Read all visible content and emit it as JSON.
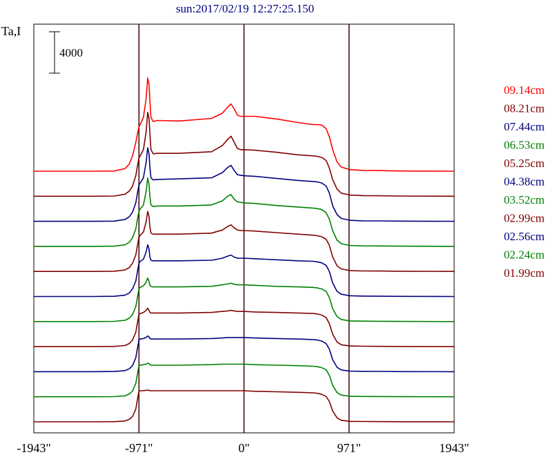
{
  "chart_data": {
    "type": "line",
    "title": "sun:2017/02/19 12:27:25.150",
    "ylabel": "Ta,I",
    "scale_bar_label": "4000",
    "scale_bar_value": 4000,
    "xlim": [
      -1943,
      1943
    ],
    "x_ticks": [
      {
        "value": -1943,
        "label": "-1943\""
      },
      {
        "value": -971,
        "label": "-971\""
      },
      {
        "value": 0,
        "label": "0\""
      },
      {
        "value": 971,
        "label": "971\""
      },
      {
        "value": 1943,
        "label": "1943\""
      }
    ],
    "vertical_markers": [
      -971,
      0,
      971
    ],
    "grid": false,
    "legend_position": "right",
    "profile_x": [
      -1943,
      -1400,
      -1200,
      -1100,
      -1060,
      -1030,
      -1000,
      -985,
      -971,
      -960,
      -930,
      -905,
      -890,
      -878,
      -870,
      -860,
      -840,
      -800,
      -600,
      -300,
      -200,
      -150,
      -120,
      -90,
      -60,
      -30,
      0,
      100,
      300,
      500,
      640,
      680,
      720,
      760,
      790,
      820,
      860,
      900,
      980,
      1100,
      1250,
      1450,
      1943
    ],
    "series": [
      {
        "name": "09.14cm",
        "color": "#ff0000",
        "baseline": 0,
        "values": [
          0,
          0,
          20,
          250,
          700,
          1500,
          2800,
          3600,
          4300,
          4500,
          5200,
          7000,
          9000,
          8400,
          6800,
          5200,
          4800,
          4900,
          4850,
          5100,
          5600,
          6200,
          6500,
          6000,
          5400,
          5300,
          5300,
          5300,
          5050,
          4700,
          4500,
          4500,
          4450,
          4100,
          3300,
          2100,
          900,
          400,
          150,
          80,
          60,
          20,
          0
        ]
      },
      {
        "name": "08.21cm",
        "color": "#800000",
        "baseline": 0,
        "values": [
          0,
          0,
          20,
          200,
          500,
          1000,
          2000,
          2900,
          3700,
          3900,
          4500,
          6200,
          8100,
          7500,
          6000,
          4500,
          4100,
          4150,
          4150,
          4300,
          4900,
          5500,
          5800,
          5200,
          4600,
          4500,
          4500,
          4450,
          4250,
          4000,
          3900,
          3850,
          3750,
          3450,
          2700,
          1600,
          700,
          300,
          120,
          60,
          50,
          20,
          0
        ]
      },
      {
        "name": "07.44cm",
        "color": "#000080",
        "baseline": 0,
        "values": [
          0,
          0,
          20,
          180,
          450,
          900,
          1800,
          2700,
          3500,
          3700,
          4200,
          5700,
          7100,
          6500,
          5200,
          4200,
          4000,
          4050,
          4100,
          4200,
          4700,
          5200,
          5400,
          4900,
          4500,
          4450,
          4400,
          4350,
          4150,
          3950,
          3850,
          3800,
          3700,
          3400,
          2700,
          1500,
          650,
          280,
          100,
          50,
          40,
          20,
          0
        ]
      },
      {
        "name": "06.53cm",
        "color": "#008000",
        "baseline": 0,
        "values": [
          0,
          0,
          20,
          150,
          400,
          850,
          1700,
          2600,
          3400,
          3600,
          4000,
          5300,
          6600,
          6000,
          4800,
          4000,
          3850,
          3900,
          3900,
          4000,
          4400,
          4850,
          5000,
          4550,
          4300,
          4250,
          4200,
          4150,
          3950,
          3800,
          3700,
          3650,
          3550,
          3250,
          2600,
          1500,
          600,
          260,
          90,
          50,
          40,
          20,
          0
        ]
      },
      {
        "name": "05.25cm",
        "color": "#800000",
        "baseline": 0,
        "values": [
          0,
          0,
          20,
          140,
          380,
          800,
          1600,
          2500,
          3300,
          3500,
          3800,
          4800,
          5800,
          5300,
          4300,
          3700,
          3600,
          3600,
          3600,
          3700,
          4000,
          4350,
          4500,
          4200,
          4000,
          3950,
          3950,
          3900,
          3750,
          3600,
          3500,
          3450,
          3350,
          3100,
          2500,
          1400,
          550,
          240,
          80,
          50,
          40,
          20,
          0
        ]
      },
      {
        "name": "04.38cm",
        "color": "#000080",
        "baseline": 0,
        "values": [
          0,
          0,
          20,
          130,
          350,
          750,
          1500,
          2400,
          3200,
          3400,
          3600,
          4300,
          5000,
          4600,
          3800,
          3500,
          3450,
          3450,
          3450,
          3500,
          3700,
          3900,
          4000,
          3800,
          3700,
          3700,
          3700,
          3650,
          3550,
          3450,
          3400,
          3350,
          3250,
          3000,
          2400,
          1300,
          500,
          220,
          70,
          40,
          30,
          15,
          0
        ]
      },
      {
        "name": "03.52cm",
        "color": "#008000",
        "baseline": 0,
        "values": [
          0,
          0,
          20,
          120,
          330,
          700,
          1450,
          2350,
          3150,
          3300,
          3450,
          3800,
          4200,
          3900,
          3500,
          3400,
          3350,
          3350,
          3350,
          3400,
          3550,
          3650,
          3700,
          3600,
          3550,
          3550,
          3550,
          3500,
          3400,
          3350,
          3300,
          3250,
          3150,
          2900,
          2300,
          1250,
          480,
          200,
          60,
          40,
          30,
          15,
          0
        ]
      },
      {
        "name": "02.99cm",
        "color": "#800000",
        "baseline": 0,
        "values": [
          0,
          0,
          20,
          110,
          300,
          650,
          1400,
          2300,
          3100,
          3200,
          3300,
          3500,
          3700,
          3500,
          3300,
          3250,
          3250,
          3250,
          3250,
          3300,
          3400,
          3450,
          3500,
          3450,
          3400,
          3400,
          3400,
          3350,
          3300,
          3250,
          3200,
          3150,
          3050,
          2800,
          2200,
          1200,
          450,
          180,
          60,
          40,
          30,
          15,
          0
        ]
      },
      {
        "name": "02.56cm",
        "color": "#000080",
        "baseline": 0,
        "values": [
          0,
          0,
          20,
          100,
          280,
          600,
          1350,
          2250,
          3050,
          3150,
          3200,
          3300,
          3450,
          3350,
          3200,
          3150,
          3150,
          3150,
          3150,
          3200,
          3250,
          3300,
          3300,
          3300,
          3300,
          3300,
          3300,
          3250,
          3200,
          3150,
          3100,
          3050,
          2950,
          2700,
          2150,
          1150,
          430,
          170,
          50,
          30,
          25,
          10,
          0
        ]
      },
      {
        "name": "02.24cm",
        "color": "#008000",
        "baseline": 0,
        "values": [
          0,
          0,
          15,
          90,
          260,
          560,
          1300,
          2200,
          3000,
          3050,
          3100,
          3150,
          3250,
          3200,
          3100,
          3050,
          3050,
          3050,
          3050,
          3100,
          3150,
          3150,
          3150,
          3150,
          3150,
          3150,
          3150,
          3100,
          3050,
          3000,
          2950,
          2900,
          2800,
          2600,
          2050,
          1100,
          400,
          160,
          50,
          30,
          20,
          10,
          0
        ]
      },
      {
        "name": "01.99cm",
        "color": "#800000",
        "baseline": 0,
        "values": [
          0,
          0,
          15,
          80,
          240,
          520,
          1250,
          2150,
          2950,
          3000,
          3000,
          3050,
          3050,
          3050,
          3000,
          3000,
          3000,
          3000,
          3000,
          3000,
          3000,
          3000,
          3000,
          3000,
          3000,
          3000,
          3000,
          2950,
          2900,
          2850,
          2800,
          2750,
          2650,
          2450,
          1950,
          1050,
          380,
          150,
          40,
          30,
          20,
          10,
          0
        ]
      }
    ]
  }
}
